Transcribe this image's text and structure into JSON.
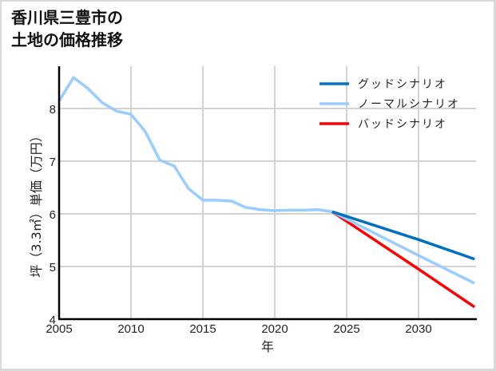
{
  "title": "香川県三豊市の\n土地の価格推移",
  "chart_data": {
    "type": "line",
    "title": "香川県三豊市の土地の価格推移",
    "xlabel": "年",
    "ylabel": "坪（3.3㎡）単価（万円）",
    "xlim": [
      2005,
      2034
    ],
    "ylim": [
      4,
      8.8
    ],
    "x_ticks": [
      2005,
      2010,
      2015,
      2020,
      2025,
      2030
    ],
    "y_ticks": [
      4,
      5,
      6,
      7,
      8
    ],
    "grid": true,
    "legend_position": "upper right",
    "historical": {
      "name": "ノーマルシナリオ",
      "x": [
        2005,
        2006,
        2007,
        2008,
        2009,
        2010,
        2011,
        2012,
        2013,
        2014,
        2015,
        2016,
        2017,
        2018,
        2019,
        2020,
        2021,
        2022,
        2023,
        2024
      ],
      "values": [
        8.14,
        8.59,
        8.38,
        8.11,
        7.95,
        7.89,
        7.56,
        7.02,
        6.91,
        6.48,
        6.26,
        6.26,
        6.24,
        6.12,
        6.08,
        6.06,
        6.07,
        6.07,
        6.08,
        6.04
      ]
    },
    "series": [
      {
        "name": "グッドシナリオ",
        "color": "#0070c0",
        "x": [
          2024,
          2030,
          2034
        ],
        "values": [
          6.04,
          5.51,
          5.14
        ]
      },
      {
        "name": "ノーマルシナリオ",
        "color": "#99ccff",
        "x": [
          2024,
          2030,
          2034
        ],
        "values": [
          6.04,
          5.21,
          4.68
        ]
      },
      {
        "name": "バッドシナリオ",
        "color": "#ff0000",
        "x": [
          2024,
          2030,
          2034
        ],
        "values": [
          6.04,
          4.95,
          4.23
        ]
      }
    ]
  },
  "legend": [
    {
      "label": "グッドシナリオ",
      "color": "#0070c0"
    },
    {
      "label": "ノーマルシナリオ",
      "color": "#99ccff"
    },
    {
      "label": "バッドシナリオ",
      "color": "#ff0000"
    }
  ],
  "axes": {
    "x_label": "年",
    "y_label": "坪（3.3㎡）単価（万円）",
    "x_ticks": [
      "2005",
      "2010",
      "2015",
      "2020",
      "2025",
      "2030"
    ],
    "y_ticks": [
      "4",
      "5",
      "6",
      "7",
      "8"
    ]
  }
}
